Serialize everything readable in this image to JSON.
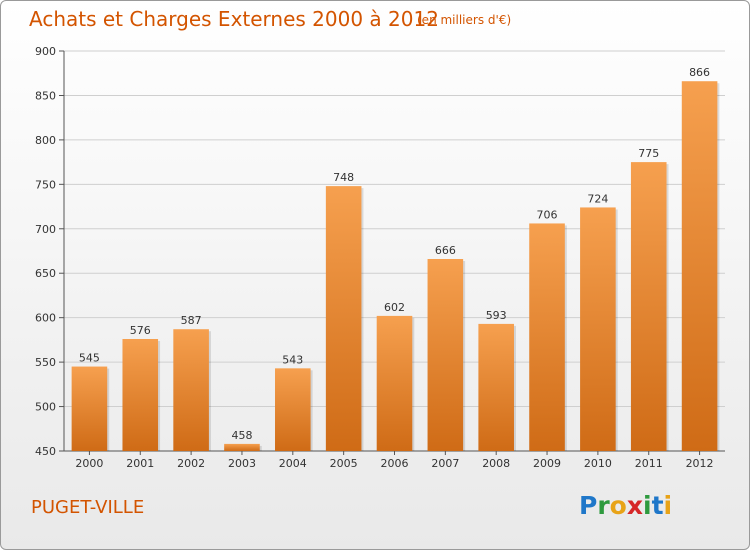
{
  "header": {
    "title": "Achats et Charges Externes 2000 à 2012",
    "subtitle": "(en milliers d'€)"
  },
  "footer": {
    "commune": "PUGET-VILLE",
    "logo": {
      "letters": [
        "P",
        "r",
        "o",
        "x",
        "i",
        "t",
        "i"
      ],
      "colors": [
        "#1f77c9",
        "#2e9a3e",
        "#e8a317",
        "#d62728",
        "#2e9a3e",
        "#1f77c9",
        "#e8a317"
      ]
    }
  },
  "chart_data": {
    "type": "bar",
    "categories": [
      "2000",
      "2001",
      "2002",
      "2003",
      "2004",
      "2005",
      "2006",
      "2007",
      "2008",
      "2009",
      "2010",
      "2011",
      "2012"
    ],
    "values": [
      545,
      576,
      587,
      458,
      543,
      748,
      602,
      666,
      593,
      706,
      724,
      775,
      866
    ],
    "value_labels": [
      "545",
      "576",
      "587",
      "458",
      "543",
      "748",
      "602",
      "666",
      "593",
      "706",
      "724",
      "775",
      "866"
    ],
    "yticks": [
      450,
      500,
      550,
      600,
      650,
      700,
      750,
      800,
      850,
      900
    ],
    "ylim": [
      450,
      900
    ],
    "grid": true,
    "bar_color_top": "#f6a04f",
    "bar_color_bottom": "#cf6b16"
  }
}
